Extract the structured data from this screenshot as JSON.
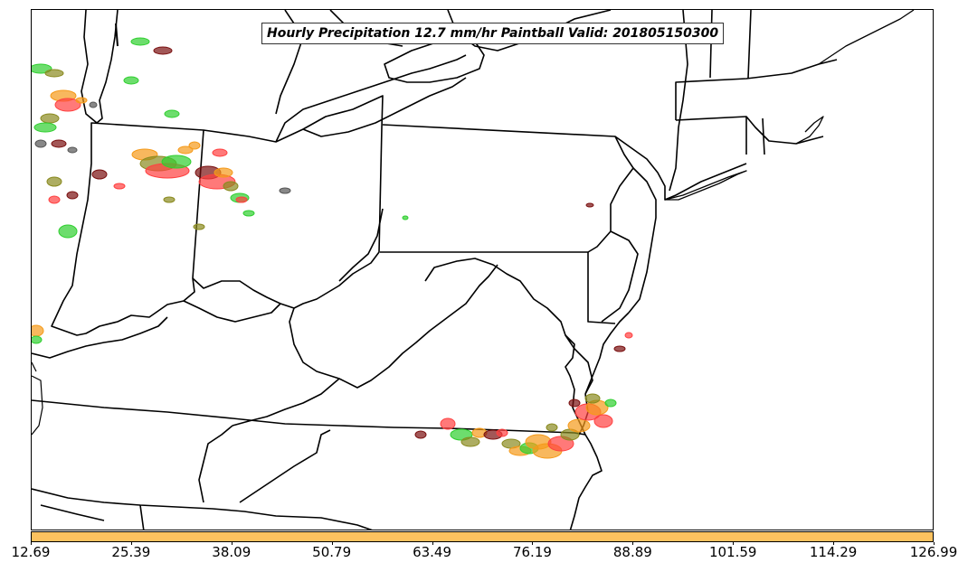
{
  "title": "Hourly Precipitation 12.7 mm/hr Paintball Valid: 201805150300",
  "colorbar": {
    "color": "#fcc25f",
    "tick_labels": [
      "12.69",
      "25.39",
      "38.09",
      "50.79",
      "63.49",
      "76.19",
      "88.89",
      "101.59",
      "114.29",
      "126.99"
    ]
  },
  "paintball_colors": [
    "#ff4040",
    "#f59a1a",
    "#2fcf2f",
    "#8a8a1f",
    "#7a1010",
    "#555555",
    "#b89a2a"
  ],
  "map": {
    "boundary_color": "#000000",
    "background": "#ffffff"
  }
}
